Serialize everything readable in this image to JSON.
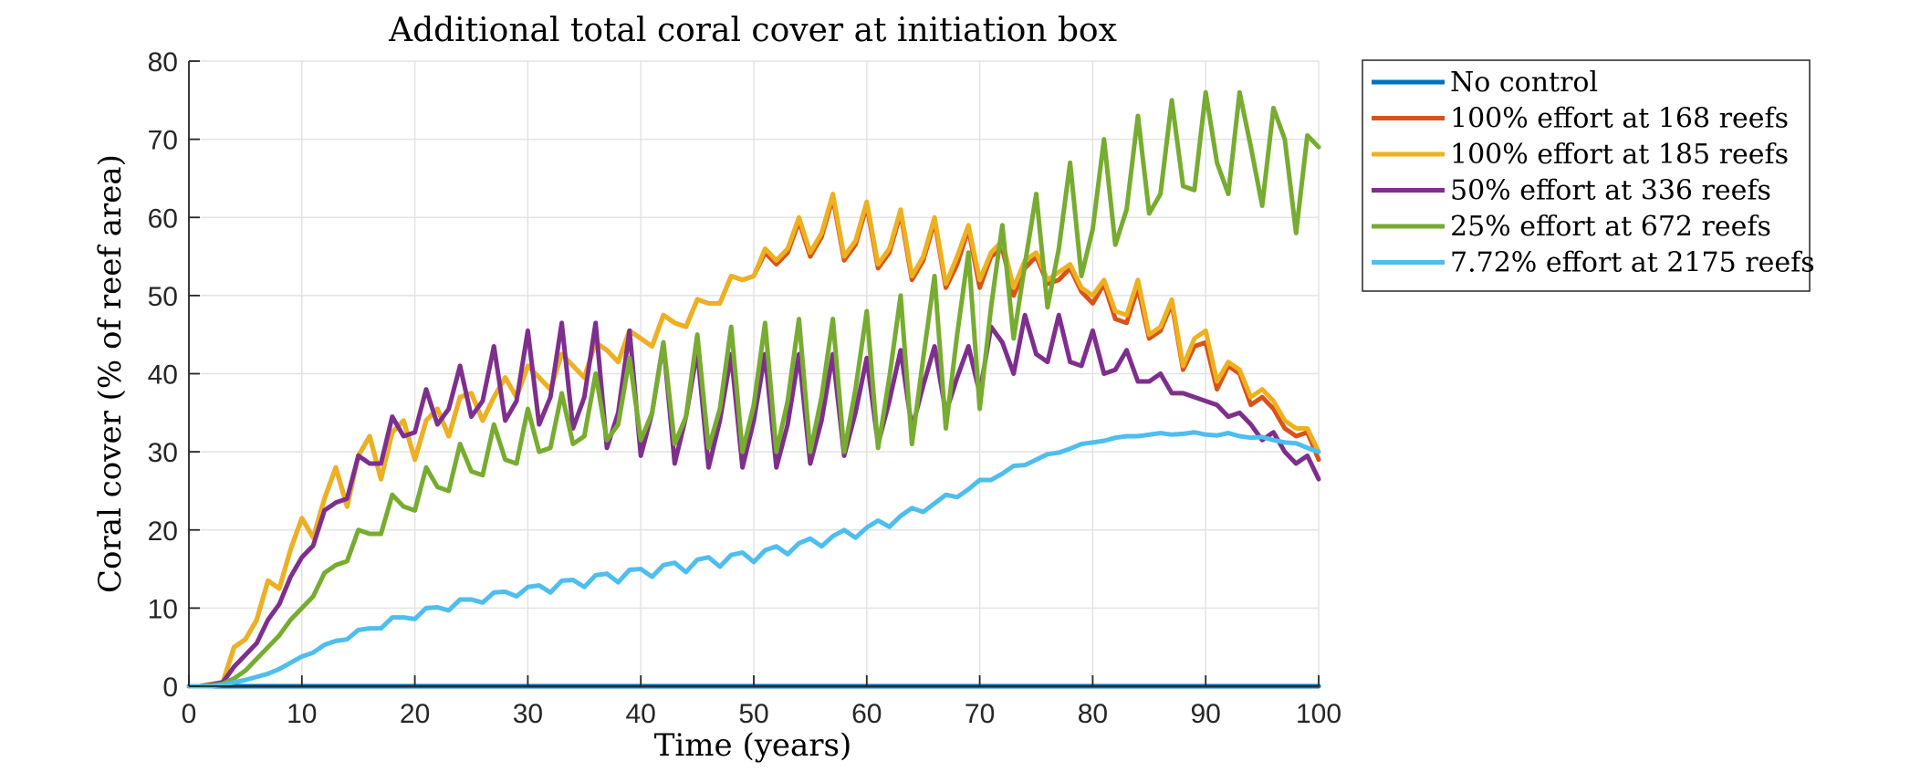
{
  "chart_data": {
    "type": "line",
    "title": "Additional total coral cover at initiation box",
    "xlabel": "Time (years)",
    "ylabel": "Coral cover (% of reef area)",
    "xlim": [
      0,
      100
    ],
    "ylim": [
      0,
      80
    ],
    "xticks": [
      0,
      10,
      20,
      30,
      40,
      50,
      60,
      70,
      80,
      90,
      100
    ],
    "yticks": [
      0,
      10,
      20,
      30,
      40,
      50,
      60,
      70,
      80
    ],
    "grid": true,
    "legend_position": "outside-top-right",
    "x": [
      0,
      1,
      2,
      3,
      4,
      5,
      6,
      7,
      8,
      9,
      10,
      11,
      12,
      13,
      14,
      15,
      16,
      17,
      18,
      19,
      20,
      21,
      22,
      23,
      24,
      25,
      26,
      27,
      28,
      29,
      30,
      31,
      32,
      33,
      34,
      35,
      36,
      37,
      38,
      39,
      40,
      41,
      42,
      43,
      44,
      45,
      46,
      47,
      48,
      49,
      50,
      51,
      52,
      53,
      54,
      55,
      56,
      57,
      58,
      59,
      60,
      61,
      62,
      63,
      64,
      65,
      66,
      67,
      68,
      69,
      70,
      71,
      72,
      73,
      74,
      75,
      76,
      77,
      78,
      79,
      80,
      81,
      82,
      83,
      84,
      85,
      86,
      87,
      88,
      89,
      90,
      91,
      92,
      93,
      94,
      95,
      96,
      97,
      98,
      99,
      100
    ],
    "series": [
      {
        "name": "No control",
        "color": "#0072BD",
        "values": [
          0,
          0,
          0,
          0,
          0,
          0,
          0,
          0,
          0,
          0,
          0,
          0,
          0,
          0,
          0,
          0,
          0,
          0,
          0,
          0,
          0,
          0,
          0,
          0,
          0,
          0,
          0,
          0,
          0,
          0,
          0,
          0,
          0,
          0,
          0,
          0,
          0,
          0,
          0,
          0,
          0,
          0,
          0,
          0,
          0,
          0,
          0,
          0,
          0,
          0,
          0,
          0,
          0,
          0,
          0,
          0,
          0,
          0,
          0,
          0,
          0,
          0,
          0,
          0,
          0,
          0,
          0,
          0,
          0,
          0,
          0,
          0,
          0,
          0,
          0,
          0,
          0,
          0,
          0,
          0,
          0,
          0,
          0,
          0,
          0,
          0,
          0,
          0,
          0,
          0,
          0,
          0,
          0,
          0,
          0,
          0,
          0,
          0,
          0,
          0,
          0
        ]
      },
      {
        "name": "100% effort at 168 reefs",
        "color": "#D95319",
        "values": [
          0,
          0,
          0.3,
          0.5,
          5,
          6,
          8.5,
          13.5,
          12.5,
          17.5,
          21.5,
          19,
          24,
          28,
          23,
          29.5,
          32,
          26.5,
          32.5,
          34,
          29,
          34,
          35.5,
          32,
          37,
          37.5,
          34,
          37,
          39.5,
          37,
          41,
          39.5,
          38,
          42.5,
          41,
          39.5,
          44,
          43,
          41.5,
          45.5,
          44.5,
          43.5,
          47.5,
          46.5,
          46,
          49.5,
          49,
          49,
          52.5,
          52,
          52.5,
          55.5,
          54,
          55.5,
          59.5,
          55,
          57.5,
          62.5,
          54.5,
          56.5,
          61.5,
          53.5,
          55.5,
          60.5,
          52,
          54.5,
          59.5,
          51,
          54,
          58.5,
          51,
          55,
          56,
          50,
          53.5,
          55,
          51.5,
          52,
          53.5,
          50.5,
          49,
          51.5,
          47,
          46.5,
          51,
          44.5,
          45.5,
          49,
          40.5,
          43.5,
          44,
          38,
          41,
          40,
          36,
          37,
          35.5,
          33,
          32,
          32.5,
          29
        ]
      },
      {
        "name": "100% effort at 185 reefs",
        "color": "#EDB120",
        "values": [
          0,
          0,
          0.3,
          0.5,
          5,
          6,
          8.5,
          13.5,
          12.5,
          17.5,
          21.5,
          19,
          24,
          28,
          23,
          29.5,
          32,
          26.5,
          32.5,
          34,
          29,
          34,
          35.5,
          32,
          37,
          37.5,
          34,
          37,
          39.5,
          37,
          41,
          39.5,
          38,
          42.5,
          41,
          39.5,
          44,
          43,
          41.5,
          45.5,
          44.5,
          43.5,
          47.5,
          46.5,
          46,
          49.5,
          49,
          49,
          52.5,
          52,
          52.5,
          56,
          54.5,
          56,
          60,
          55.5,
          58,
          63,
          55,
          57,
          62,
          54,
          56,
          61,
          52.5,
          55,
          60,
          51.5,
          55,
          59,
          52,
          55.5,
          57,
          51,
          54.5,
          55.5,
          52,
          53,
          54,
          51,
          50,
          52,
          48,
          47.5,
          52,
          45,
          46,
          49.5,
          41,
          44.5,
          45.5,
          39,
          41.5,
          40.5,
          37,
          38,
          36.5,
          34,
          33,
          33,
          30
        ]
      },
      {
        "name": "50% effort at 336 reefs",
        "color": "#7E2F8E",
        "values": [
          0,
          0,
          0.2,
          0.5,
          2.5,
          4,
          5.5,
          8.5,
          10.5,
          14,
          16.5,
          18,
          22.5,
          23.5,
          24,
          29.5,
          28.5,
          28.5,
          34.5,
          32,
          32.5,
          38,
          33.5,
          35.5,
          41,
          34.5,
          36.5,
          43.5,
          34,
          36.5,
          45.5,
          33.5,
          37,
          46.5,
          33,
          37,
          46.5,
          30.5,
          35,
          45.5,
          29.5,
          35,
          44,
          28.5,
          34.5,
          43,
          28,
          34,
          42.5,
          28,
          34,
          42.5,
          28,
          33.5,
          42.5,
          28.5,
          34,
          42.5,
          29.5,
          35,
          42,
          31,
          36.5,
          43,
          33,
          38.5,
          43.5,
          35,
          39.5,
          43.5,
          37.5,
          46,
          44,
          40,
          47.5,
          42.5,
          41.5,
          47.5,
          41.5,
          41,
          45.5,
          40,
          40.5,
          43,
          39,
          39,
          40,
          37.5,
          37.5,
          37,
          36.5,
          36,
          34.5,
          35,
          33.5,
          31.5,
          32.5,
          30,
          28.5,
          29.5,
          26.5
        ]
      },
      {
        "name": "25% effort at 672 reefs",
        "color": "#77AC30",
        "values": [
          0,
          0,
          0.1,
          0.3,
          1,
          2,
          3.5,
          5,
          6.5,
          8.5,
          10,
          11.5,
          14.5,
          15.5,
          16,
          20,
          19.5,
          19.5,
          24.5,
          23,
          22.5,
          28,
          25.5,
          25,
          31,
          27.5,
          27,
          33.5,
          29,
          28.5,
          35.5,
          30,
          30.5,
          37.5,
          31,
          32,
          40,
          31.5,
          33.5,
          42,
          31.5,
          35,
          44,
          31,
          34.5,
          45,
          30.5,
          35.5,
          46,
          30,
          36,
          46.5,
          30,
          36.5,
          47,
          30,
          37,
          47,
          30,
          38,
          48,
          30.5,
          39.5,
          50,
          31,
          42,
          52.5,
          33,
          45,
          55.5,
          35.5,
          48.5,
          59,
          44.5,
          54,
          63,
          48.5,
          56,
          67,
          52.5,
          58.5,
          70,
          56.5,
          61,
          73,
          60.5,
          63,
          75,
          64,
          63.5,
          76,
          67,
          63,
          76,
          69,
          61.5,
          74,
          70,
          58,
          70.5,
          69
        ]
      },
      {
        "name": "7.72% effort at 2175 reefs",
        "color": "#4DBEEE",
        "values": [
          0,
          0,
          0,
          0.2,
          0.5,
          0.8,
          1.2,
          1.6,
          2.2,
          3,
          3.8,
          4.3,
          5.3,
          5.8,
          6,
          7.2,
          7.4,
          7.4,
          8.8,
          8.8,
          8.6,
          10,
          10.1,
          9.7,
          11.1,
          11.1,
          10.7,
          12,
          12.1,
          11.5,
          12.7,
          12.9,
          12,
          13.5,
          13.6,
          12.7,
          14.2,
          14.4,
          13.3,
          14.9,
          15,
          14,
          15.5,
          15.8,
          14.6,
          16.2,
          16.5,
          15.3,
          16.8,
          17.1,
          15.9,
          17.4,
          17.9,
          16.9,
          18.3,
          18.9,
          17.9,
          19.2,
          20,
          19,
          20.3,
          21.2,
          20.4,
          21.8,
          22.8,
          22.3,
          23.4,
          24.5,
          24.2,
          25.2,
          26.4,
          26.4,
          27.2,
          28.2,
          28.3,
          29,
          29.7,
          29.9,
          30.4,
          31,
          31.2,
          31.4,
          31.8,
          32,
          32,
          32.2,
          32.4,
          32.2,
          32.3,
          32.5,
          32.2,
          32.1,
          32.4,
          32,
          31.8,
          31.9,
          31.5,
          31.2,
          31.1,
          30.5,
          30
        ]
      }
    ]
  }
}
